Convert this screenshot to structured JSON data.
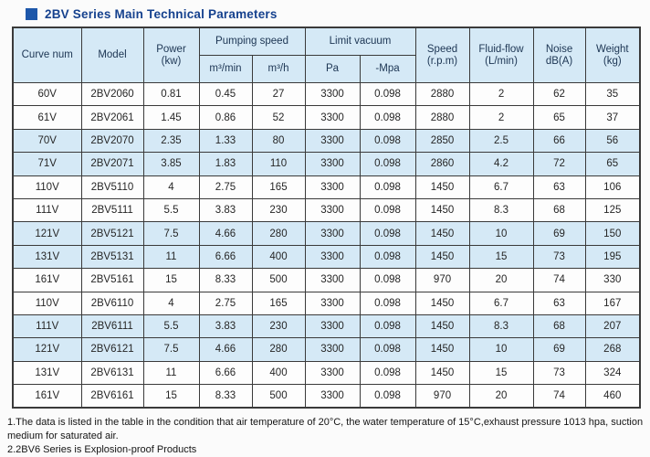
{
  "page": {
    "title": "2BV Series Main Technical Parameters"
  },
  "colors": {
    "accent_square": "#1d57aa",
    "title_text": "#15418e",
    "header_bg": "#d5e9f6",
    "band_row_bg": "#d5e9f6",
    "border": "#3a3a3a",
    "cell_text": "#262626"
  },
  "table": {
    "header": {
      "curve_num": "Curve num",
      "model": "Model",
      "power_line1": "Power",
      "power_line2": "(kw)",
      "pumping_speed": "Pumping speed",
      "pumping_unit_m3min": "m³/min",
      "pumping_unit_m3h": "m³/h",
      "limit_vacuum": "Limit vacuum",
      "vacuum_unit_pa": "Pa",
      "vacuum_unit_mpa": "-Mpa",
      "speed_line1": "Speed",
      "speed_line2": "(r.p.m)",
      "fluid_line1": "Fluid-flow",
      "fluid_line2": "(L/min)",
      "noise_line1": "Noise",
      "noise_line2": "dB(A)",
      "weight_line1": "Weight",
      "weight_line2": "(kg)"
    },
    "rows": [
      {
        "curve": "60V",
        "model": "2BV2060",
        "power": "0.81",
        "m3min": "0.45",
        "m3h": "27",
        "pa": "3300",
        "mpa": "0.098",
        "speed": "2880",
        "fluid": "2",
        "noise": "62",
        "weight": "35",
        "band": false
      },
      {
        "curve": "61V",
        "model": "2BV2061",
        "power": "1.45",
        "m3min": "0.86",
        "m3h": "52",
        "pa": "3300",
        "mpa": "0.098",
        "speed": "2880",
        "fluid": "2",
        "noise": "65",
        "weight": "37",
        "band": false
      },
      {
        "curve": "70V",
        "model": "2BV2070",
        "power": "2.35",
        "m3min": "1.33",
        "m3h": "80",
        "pa": "3300",
        "mpa": "0.098",
        "speed": "2850",
        "fluid": "2.5",
        "noise": "66",
        "weight": "56",
        "band": true
      },
      {
        "curve": "71V",
        "model": "2BV2071",
        "power": "3.85",
        "m3min": "1.83",
        "m3h": "110",
        "pa": "3300",
        "mpa": "0.098",
        "speed": "2860",
        "fluid": "4.2",
        "noise": "72",
        "weight": "65",
        "band": true
      },
      {
        "curve": "110V",
        "model": "2BV5110",
        "power": "4",
        "m3min": "2.75",
        "m3h": "165",
        "pa": "3300",
        "mpa": "0.098",
        "speed": "1450",
        "fluid": "6.7",
        "noise": "63",
        "weight": "106",
        "band": false
      },
      {
        "curve": "111V",
        "model": "2BV5111",
        "power": "5.5",
        "m3min": "3.83",
        "m3h": "230",
        "pa": "3300",
        "mpa": "0.098",
        "speed": "1450",
        "fluid": "8.3",
        "noise": "68",
        "weight": "125",
        "band": false
      },
      {
        "curve": "121V",
        "model": "2BV5121",
        "power": "7.5",
        "m3min": "4.66",
        "m3h": "280",
        "pa": "3300",
        "mpa": "0.098",
        "speed": "1450",
        "fluid": "10",
        "noise": "69",
        "weight": "150",
        "band": true
      },
      {
        "curve": "131V",
        "model": "2BV5131",
        "power": "11",
        "m3min": "6.66",
        "m3h": "400",
        "pa": "3300",
        "mpa": "0.098",
        "speed": "1450",
        "fluid": "15",
        "noise": "73",
        "weight": "195",
        "band": true
      },
      {
        "curve": "161V",
        "model": "2BV5161",
        "power": "15",
        "m3min": "8.33",
        "m3h": "500",
        "pa": "3300",
        "mpa": "0.098",
        "speed": "970",
        "fluid": "20",
        "noise": "74",
        "weight": "330",
        "band": false
      },
      {
        "curve": "110V",
        "model": "2BV6110",
        "power": "4",
        "m3min": "2.75",
        "m3h": "165",
        "pa": "3300",
        "mpa": "0.098",
        "speed": "1450",
        "fluid": "6.7",
        "noise": "63",
        "weight": "167",
        "band": false
      },
      {
        "curve": "111V",
        "model": "2BV6111",
        "power": "5.5",
        "m3min": "3.83",
        "m3h": "230",
        "pa": "3300",
        "mpa": "0.098",
        "speed": "1450",
        "fluid": "8.3",
        "noise": "68",
        "weight": "207",
        "band": true
      },
      {
        "curve": "121V",
        "model": "2BV6121",
        "power": "7.5",
        "m3min": "4.66",
        "m3h": "280",
        "pa": "3300",
        "mpa": "0.098",
        "speed": "1450",
        "fluid": "10",
        "noise": "69",
        "weight": "268",
        "band": true
      },
      {
        "curve": "131V",
        "model": "2BV6131",
        "power": "11",
        "m3min": "6.66",
        "m3h": "400",
        "pa": "3300",
        "mpa": "0.098",
        "speed": "1450",
        "fluid": "15",
        "noise": "73",
        "weight": "324",
        "band": false
      },
      {
        "curve": "161V",
        "model": "2BV6161",
        "power": "15",
        "m3min": "8.33",
        "m3h": "500",
        "pa": "3300",
        "mpa": "0.098",
        "speed": "970",
        "fluid": "20",
        "noise": "74",
        "weight": "460",
        "band": false
      }
    ]
  },
  "notes": [
    "1.The data is listed in the table in the condition that air temperature of 20°C, the water temperature of 15°C,exhaust pressure  1013 hpa, suction medium for saturated air.",
    "2.2BV6 Series is Explosion-proof Products"
  ]
}
